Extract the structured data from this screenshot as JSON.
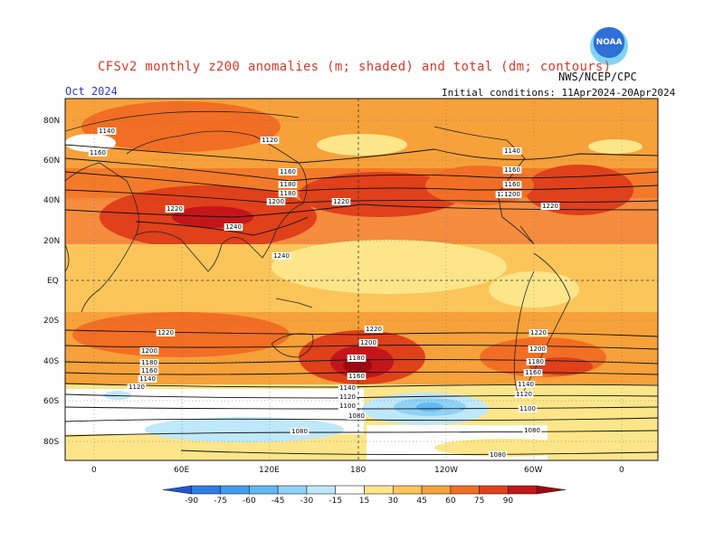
{
  "title": "CFSv2 monthly z200 anomalies (m; shaded) and total (dm; contours)",
  "month": "Oct 2024",
  "agency": "NWS/NCEP/CPC",
  "logo_text": "NOAA",
  "initial_conditions": "Initial conditions: 11Apr2024-20Apr2024",
  "lat_labels": [
    "80N",
    "60N",
    "40N",
    "20N",
    "EQ",
    "20S",
    "40S",
    "60S",
    "80S"
  ],
  "lon_labels": [
    "0",
    "60E",
    "120E",
    "180",
    "120W",
    "60W",
    "0"
  ],
  "colorbar": {
    "labels": [
      "-90",
      "-75",
      "-60",
      "-45",
      "-30",
      "-15",
      "15",
      "30",
      "45",
      "60",
      "75",
      "90"
    ],
    "colors": [
      "#1e56d6",
      "#2d7ee6",
      "#3f9cf0",
      "#62b8f6",
      "#8fd2f8",
      "#bfe8fb",
      "#ffffff",
      "#fde68a",
      "#fbc55a",
      "#f7a13a",
      "#f26e24",
      "#e0401a",
      "#c4161a",
      "#9c0a14"
    ]
  },
  "contour_labels": [
    "1140",
    "1120",
    "1160",
    "1160",
    "1140",
    "1180",
    "1160",
    "1200",
    "1180",
    "1220",
    "1200",
    "1240",
    "1220",
    "1240",
    "1140",
    "1160",
    "1180",
    "1200",
    "1220",
    "1220",
    "1200",
    "1180",
    "1160",
    "1140",
    "1120",
    "1220",
    "1200",
    "1180",
    "1160",
    "1140",
    "1120",
    "1100",
    "1080",
    "1080",
    "1220",
    "1200",
    "1180",
    "1160",
    "1140",
    "1120",
    "1100",
    "1080",
    "1080"
  ]
}
